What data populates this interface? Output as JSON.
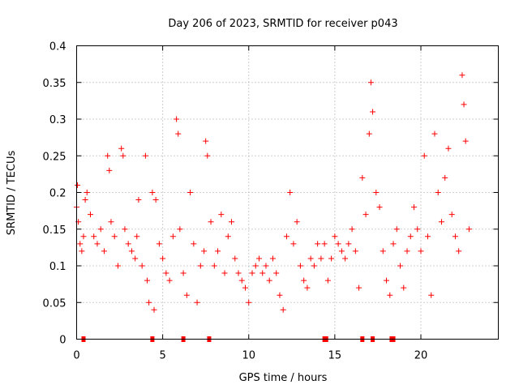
{
  "chart_data": {
    "type": "scatter",
    "title": "Day 206 of 2023, SRMTID for receiver p043",
    "xlabel": "GPS time / hours",
    "ylabel": "SRMTID / TECUs",
    "xlim": [
      0,
      24.5
    ],
    "ylim": [
      0,
      0.4
    ],
    "xticks": [
      0,
      5,
      10,
      15,
      20
    ],
    "xtick_labels": [
      "0",
      "5",
      "10",
      "15",
      "20"
    ],
    "yticks": [
      0,
      0.05,
      0.1,
      0.15,
      0.2,
      0.25,
      0.3,
      0.35,
      0.4
    ],
    "ytick_labels": [
      "0",
      "0.05",
      "0.1",
      "0.15",
      "0.2",
      "0.25",
      "0.3",
      "0.35",
      "0.4"
    ],
    "grid": true,
    "marker": "+",
    "color": "#ff0000",
    "series": [
      {
        "name": "SRMTID",
        "x": [
          0.0,
          0.05,
          0.1,
          0.2,
          0.3,
          0.4,
          0.5,
          0.6,
          0.8,
          1.0,
          1.2,
          1.4,
          1.6,
          1.8,
          1.9,
          2.0,
          2.2,
          2.4,
          2.6,
          2.7,
          2.8,
          3.0,
          3.2,
          3.4,
          3.5,
          3.6,
          3.8,
          4.0,
          4.1,
          4.2,
          4.4,
          4.5,
          4.6,
          4.8,
          5.0,
          5.2,
          5.4,
          5.6,
          5.8,
          5.9,
          6.0,
          6.2,
          6.4,
          6.6,
          6.8,
          7.0,
          7.2,
          7.4,
          7.5,
          7.6,
          7.8,
          8.0,
          8.2,
          8.4,
          8.6,
          8.8,
          9.0,
          9.2,
          9.4,
          9.6,
          9.8,
          10.0,
          10.2,
          10.4,
          10.6,
          10.8,
          11.0,
          11.2,
          11.4,
          11.6,
          11.8,
          12.0,
          12.2,
          12.4,
          12.6,
          12.8,
          13.0,
          13.2,
          13.4,
          13.6,
          13.8,
          14.0,
          14.2,
          14.4,
          14.6,
          14.8,
          15.0,
          15.2,
          15.4,
          15.6,
          15.8,
          16.0,
          16.2,
          16.4,
          16.6,
          16.8,
          17.0,
          17.1,
          17.2,
          17.4,
          17.6,
          17.8,
          18.0,
          18.2,
          18.4,
          18.6,
          18.8,
          19.0,
          19.2,
          19.4,
          19.6,
          19.8,
          20.0,
          20.2,
          20.4,
          20.6,
          20.8,
          21.0,
          21.2,
          21.4,
          21.6,
          21.8,
          22.0,
          22.2,
          22.4,
          22.5,
          22.6,
          22.8
        ],
        "y": [
          0.18,
          0.21,
          0.16,
          0.13,
          0.12,
          0.14,
          0.19,
          0.2,
          0.17,
          0.14,
          0.13,
          0.15,
          0.12,
          0.25,
          0.23,
          0.16,
          0.14,
          0.1,
          0.26,
          0.25,
          0.15,
          0.13,
          0.12,
          0.11,
          0.14,
          0.19,
          0.1,
          0.25,
          0.08,
          0.05,
          0.2,
          0.04,
          0.19,
          0.13,
          0.11,
          0.09,
          0.08,
          0.14,
          0.3,
          0.28,
          0.15,
          0.09,
          0.06,
          0.2,
          0.13,
          0.05,
          0.1,
          0.12,
          0.27,
          0.25,
          0.16,
          0.1,
          0.12,
          0.17,
          0.09,
          0.14,
          0.16,
          0.11,
          0.09,
          0.08,
          0.07,
          0.05,
          0.09,
          0.1,
          0.11,
          0.09,
          0.1,
          0.08,
          0.11,
          0.09,
          0.06,
          0.04,
          0.14,
          0.2,
          0.13,
          0.16,
          0.1,
          0.08,
          0.07,
          0.11,
          0.1,
          0.13,
          0.11,
          0.13,
          0.08,
          0.11,
          0.14,
          0.13,
          0.12,
          0.11,
          0.13,
          0.15,
          0.12,
          0.07,
          0.22,
          0.17,
          0.28,
          0.35,
          0.31,
          0.2,
          0.18,
          0.12,
          0.08,
          0.06,
          0.13,
          0.15,
          0.1,
          0.07,
          0.12,
          0.14,
          0.18,
          0.15,
          0.12,
          0.25,
          0.14,
          0.06,
          0.28,
          0.2,
          0.16,
          0.22,
          0.26,
          0.17,
          0.14,
          0.12,
          0.36,
          0.32,
          0.27,
          0.15
        ]
      }
    ],
    "gap_markers_x": [
      0.4,
      4.4,
      6.2,
      7.7,
      14.4,
      14.5,
      16.6,
      17.2,
      18.3,
      18.4
    ]
  }
}
